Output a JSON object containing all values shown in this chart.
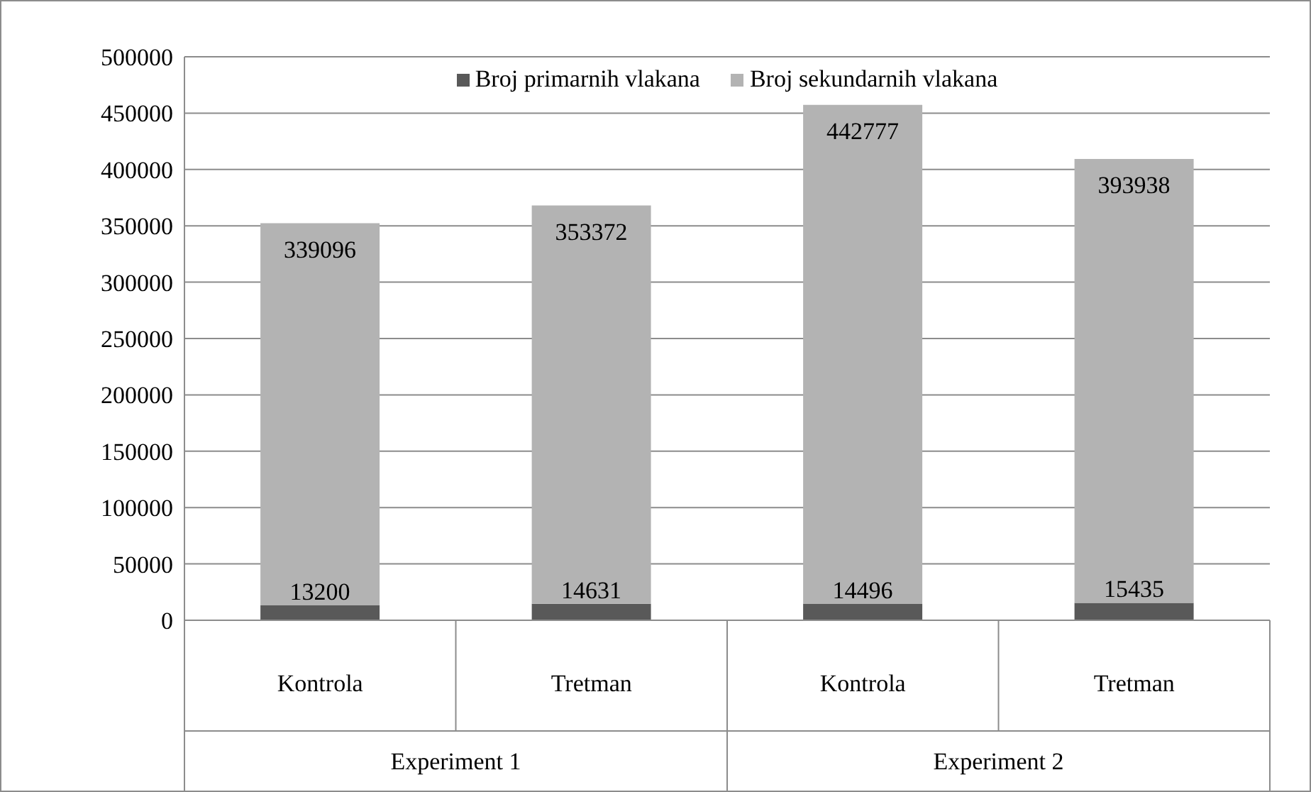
{
  "chart_data": {
    "type": "bar",
    "stacked": true,
    "categories": [
      "Kontrola",
      "Tretman",
      "Kontrola",
      "Tretman"
    ],
    "series": [
      {
        "name": "Broj primarnih vlakana",
        "color": "#595959",
        "values": [
          13200,
          14631,
          14496,
          15435
        ]
      },
      {
        "name": "Broj sekundarnih vlakana",
        "color": "#b3b3b3",
        "values": [
          339096,
          353372,
          442777,
          393938
        ]
      }
    ],
    "ylim": [
      0,
      500000
    ],
    "yticks": [
      0,
      50000,
      100000,
      150000,
      200000,
      250000,
      300000,
      350000,
      400000,
      450000,
      500000
    ],
    "grid": "y",
    "legend": "top",
    "data_labels": true,
    "annotations": [
      "Experiment 1",
      "Experiment 2"
    ]
  }
}
